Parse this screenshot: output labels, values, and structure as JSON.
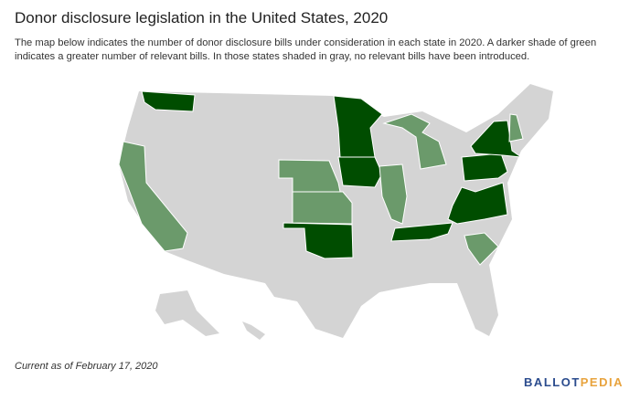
{
  "header": {
    "title": "Donor disclosure legislation in the United States, 2020",
    "description": "The map below indicates the number of donor disclosure bills under consideration in each state in 2020. A darker shade of green indicates a greater number of relevant bills. In those states shaded in gray, no relevant bills have been introduced."
  },
  "footer": {
    "note": "Current as of February 17, 2020",
    "logo": [
      "BALLOT",
      "PEDIA"
    ]
  }
}
